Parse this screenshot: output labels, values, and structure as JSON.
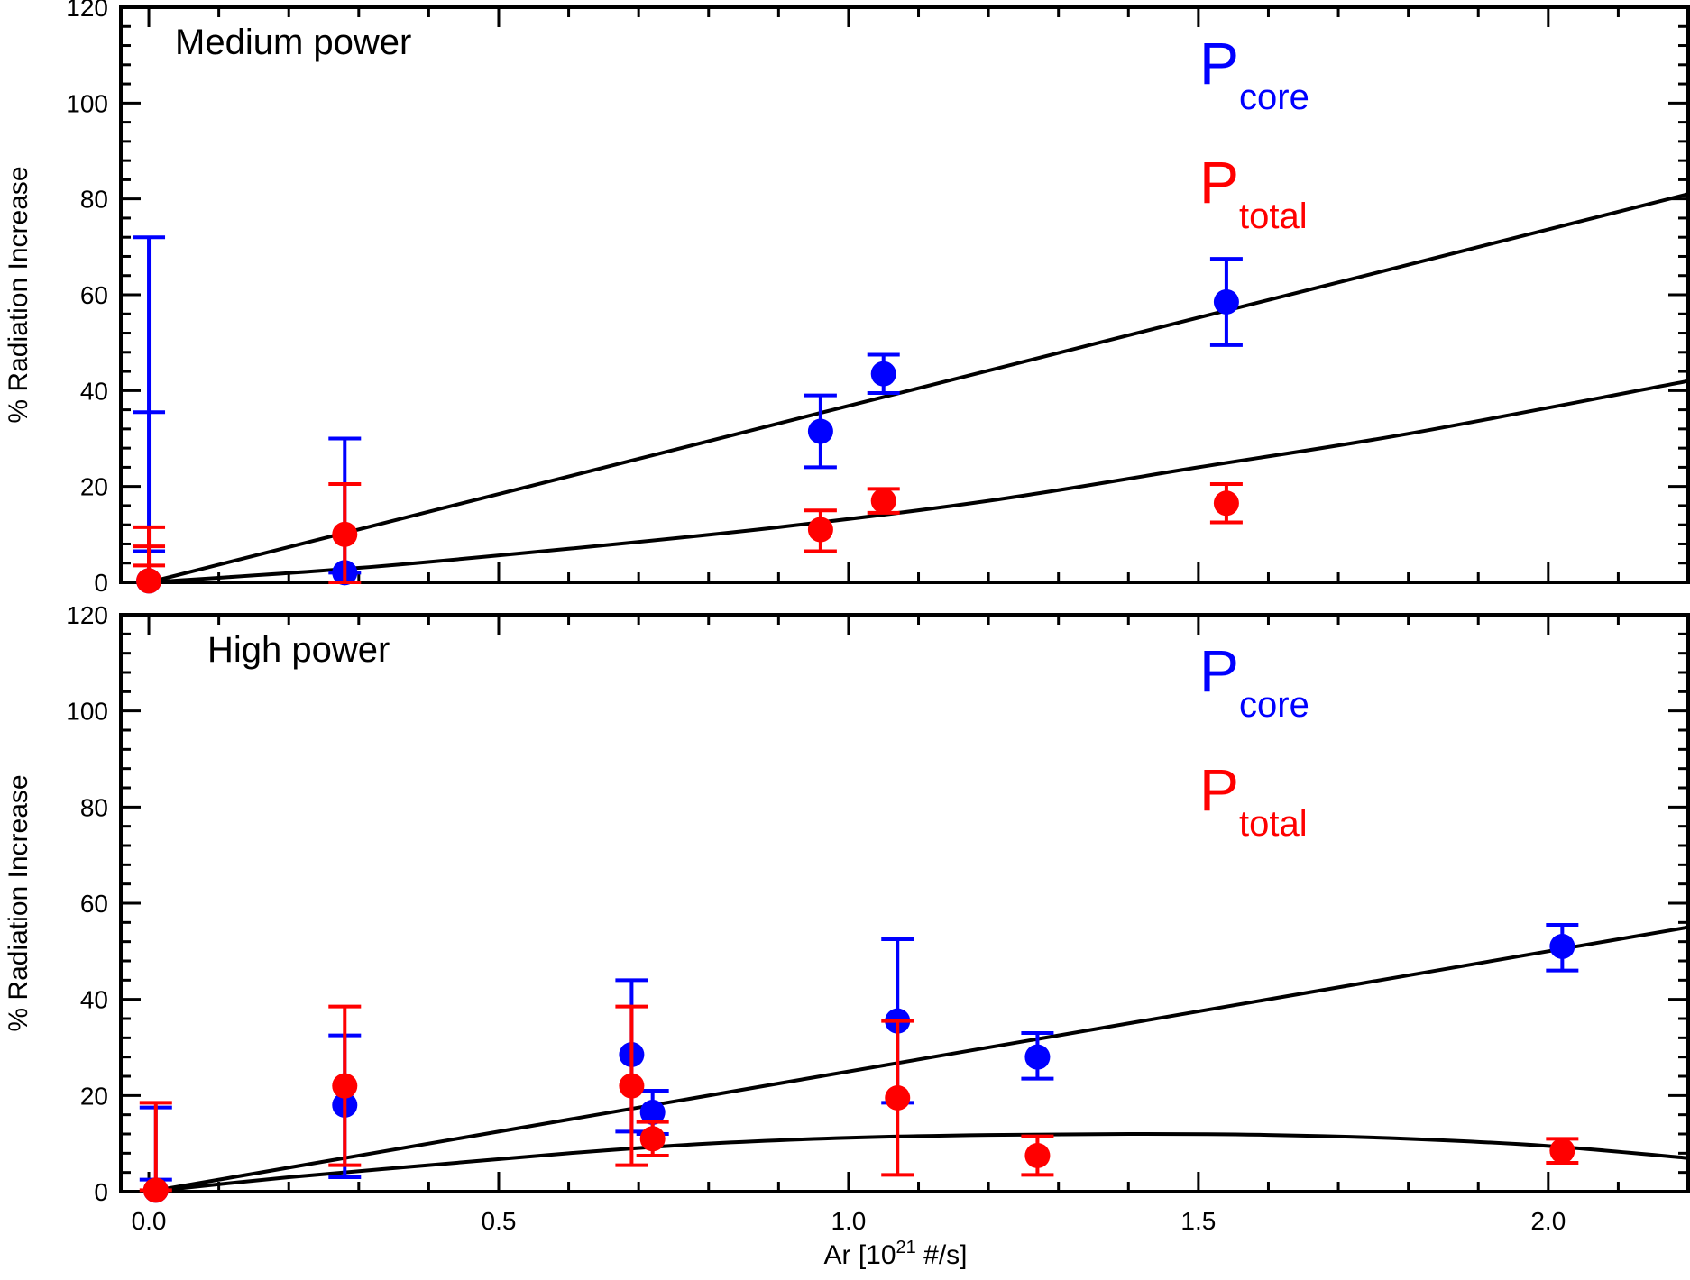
{
  "chart_data": [
    {
      "type": "scatter",
      "title": "Medium power",
      "xlabel": "Ar [10^21 #/s]",
      "ylabel": "% Radiation Increase",
      "xlim": [
        -0.04,
        2.2
      ],
      "ylim": [
        0,
        120
      ],
      "x_ticks": [
        0.0,
        0.5,
        1.0,
        1.5,
        2.0
      ],
      "x_tick_labels": [
        "0.0",
        "0.5",
        "1.0",
        "1.5",
        "2.0"
      ],
      "y_ticks": [
        0,
        20,
        40,
        60,
        80,
        100,
        120
      ],
      "y_tick_labels": [
        "0",
        "20",
        "40",
        "60",
        "80",
        "100",
        "120"
      ],
      "show_x_tick_labels": false,
      "legend": [
        {
          "main": "P",
          "sub": "core",
          "color": "#0000ff"
        },
        {
          "main": "P",
          "sub": "total",
          "color": "#ff0000"
        }
      ],
      "series": [
        {
          "color": "#0000ff",
          "points": [
            {
              "x": 0.0,
              "y": 0.3,
              "lo": 0.3,
              "hi": 72.0,
              "caps": [
                6.5,
                35.5,
                72.0
              ]
            },
            {
              "x": 0.28,
              "y": 2.0,
              "lo": 2.0,
              "hi": 30.0
            },
            {
              "x": 0.96,
              "y": 31.5,
              "lo": 24.0,
              "hi": 39.0
            },
            {
              "x": 1.05,
              "y": 43.5,
              "lo": 39.5,
              "hi": 47.5
            },
            {
              "x": 1.54,
              "y": 58.5,
              "lo": 49.5,
              "hi": 67.5
            }
          ],
          "fit": {
            "kind": "line",
            "points": [
              [
                0.0,
                0.0
              ],
              [
                2.2,
                81.0
              ]
            ]
          }
        },
        {
          "color": "#ff0000",
          "points": [
            {
              "x": 0.0,
              "y": 0.3,
              "lo": 0.3,
              "hi": 11.5,
              "caps": [
                3.5,
                7.5,
                11.5
              ]
            },
            {
              "x": 0.28,
              "y": 10.0,
              "lo": 0.0,
              "hi": 20.5
            },
            {
              "x": 0.96,
              "y": 11.0,
              "lo": 6.5,
              "hi": 15.0
            },
            {
              "x": 1.05,
              "y": 17.0,
              "lo": 14.5,
              "hi": 19.5
            },
            {
              "x": 1.54,
              "y": 16.5,
              "lo": 12.5,
              "hi": 20.5
            }
          ],
          "fit": {
            "kind": "curve",
            "points": [
              [
                0.0,
                0.0
              ],
              [
                0.3,
                3.0
              ],
              [
                0.6,
                7.0
              ],
              [
                0.9,
                11.5
              ],
              [
                1.2,
                17.0
              ],
              [
                1.5,
                24.0
              ],
              [
                1.8,
                31.0
              ],
              [
                2.2,
                42.0
              ]
            ]
          }
        }
      ]
    },
    {
      "type": "scatter",
      "title": "High power",
      "xlabel": "Ar [10^21 #/s]",
      "ylabel": "% Radiation Increase",
      "xlim": [
        -0.04,
        2.2
      ],
      "ylim": [
        0,
        120
      ],
      "x_ticks": [
        0.0,
        0.5,
        1.0,
        1.5,
        2.0
      ],
      "x_tick_labels": [
        "0.0",
        "0.5",
        "1.0",
        "1.5",
        "2.0"
      ],
      "y_ticks": [
        0,
        20,
        40,
        60,
        80,
        100,
        120
      ],
      "y_tick_labels": [
        "0",
        "20",
        "40",
        "60",
        "80",
        "100",
        "120"
      ],
      "show_x_tick_labels": true,
      "legend": [
        {
          "main": "P",
          "sub": "core",
          "color": "#0000ff"
        },
        {
          "main": "P",
          "sub": "total",
          "color": "#ff0000"
        }
      ],
      "series": [
        {
          "color": "#0000ff",
          "points": [
            {
              "x": 0.01,
              "y": 0.3,
              "lo": 0.3,
              "hi": 17.5,
              "caps": [
                2.5,
                17.5
              ]
            },
            {
              "x": 0.28,
              "y": 18.0,
              "lo": 3.0,
              "hi": 32.5
            },
            {
              "x": 0.69,
              "y": 28.5,
              "lo": 12.5,
              "hi": 44.0
            },
            {
              "x": 0.72,
              "y": 16.5,
              "lo": 12.0,
              "hi": 21.0
            },
            {
              "x": 1.07,
              "y": 35.5,
              "lo": 18.5,
              "hi": 52.5
            },
            {
              "x": 1.27,
              "y": 28.0,
              "lo": 23.5,
              "hi": 33.0
            },
            {
              "x": 2.02,
              "y": 51.0,
              "lo": 46.0,
              "hi": 55.5
            }
          ],
          "fit": {
            "kind": "line",
            "points": [
              [
                0.0,
                0.0
              ],
              [
                2.2,
                55.0
              ]
            ]
          }
        },
        {
          "color": "#ff0000",
          "points": [
            {
              "x": 0.01,
              "y": 0.3,
              "lo": 0.3,
              "hi": 18.5
            },
            {
              "x": 0.28,
              "y": 22.0,
              "lo": 5.5,
              "hi": 38.5
            },
            {
              "x": 0.69,
              "y": 22.0,
              "lo": 5.5,
              "hi": 38.5
            },
            {
              "x": 0.72,
              "y": 11.0,
              "lo": 7.5,
              "hi": 14.5
            },
            {
              "x": 1.07,
              "y": 19.5,
              "lo": 3.5,
              "hi": 35.5
            },
            {
              "x": 1.27,
              "y": 7.5,
              "lo": 3.5,
              "hi": 11.5
            },
            {
              "x": 2.02,
              "y": 8.5,
              "lo": 6.0,
              "hi": 11.0
            }
          ],
          "fit": {
            "kind": "curve",
            "points": [
              [
                0.0,
                0.0
              ],
              [
                0.2,
                3.0
              ],
              [
                0.4,
                5.5
              ],
              [
                0.6,
                8.0
              ],
              [
                0.8,
                10.0
              ],
              [
                1.0,
                11.2
              ],
              [
                1.2,
                11.8
              ],
              [
                1.4,
                12.0
              ],
              [
                1.6,
                11.8
              ],
              [
                1.8,
                11.0
              ],
              [
                2.0,
                9.5
              ],
              [
                2.2,
                7.0
              ]
            ]
          }
        }
      ]
    }
  ]
}
